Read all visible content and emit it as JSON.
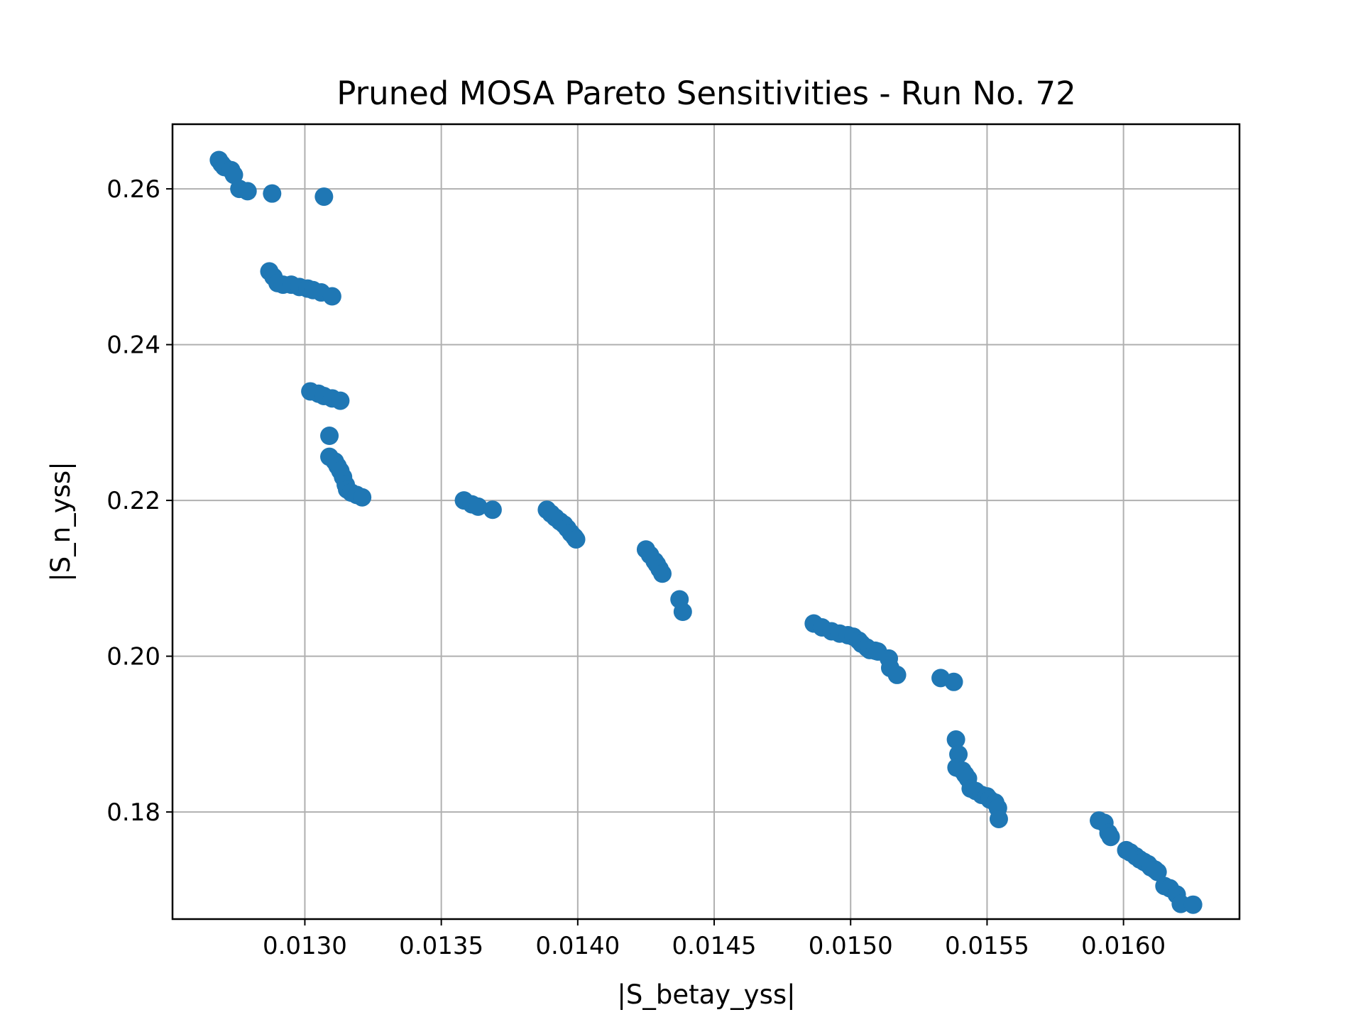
{
  "chart_data": {
    "type": "scatter",
    "title": "Pruned MOSA Pareto Sensitivities - Run No. 72",
    "xlabel": "|S_betay_yss|",
    "ylabel": "|S_n_yss|",
    "xlim": [
      0.012515,
      0.016425
    ],
    "ylim": [
      0.16625,
      0.2683
    ],
    "xticks": [
      0.013,
      0.0135,
      0.014,
      0.0145,
      0.015,
      0.0155,
      0.016
    ],
    "xtick_labels": [
      "0.0130",
      "0.0135",
      "0.0140",
      "0.0145",
      "0.0150",
      "0.0155",
      "0.0160"
    ],
    "yticks": [
      0.18,
      0.2,
      0.22,
      0.24,
      0.26
    ],
    "ytick_labels": [
      "0.18",
      "0.20",
      "0.22",
      "0.24",
      "0.26"
    ],
    "grid": true,
    "marker_color": "#1f77b4",
    "points": [
      [
        0.012685,
        0.2637
      ],
      [
        0.012695,
        0.2632
      ],
      [
        0.012705,
        0.2628
      ],
      [
        0.01273,
        0.2624
      ],
      [
        0.01274,
        0.2618
      ],
      [
        0.01276,
        0.26
      ],
      [
        0.01279,
        0.2597
      ],
      [
        0.01288,
        0.2594
      ],
      [
        0.01307,
        0.259
      ],
      [
        0.01287,
        0.2494
      ],
      [
        0.012885,
        0.2487
      ],
      [
        0.0129,
        0.2479
      ],
      [
        0.01292,
        0.2477
      ],
      [
        0.01295,
        0.2477
      ],
      [
        0.01298,
        0.2474
      ],
      [
        0.01301,
        0.2472
      ],
      [
        0.01303,
        0.247
      ],
      [
        0.01306,
        0.2467
      ],
      [
        0.0131,
        0.2462
      ],
      [
        0.01302,
        0.234
      ],
      [
        0.01305,
        0.2337
      ],
      [
        0.01307,
        0.2334
      ],
      [
        0.0131,
        0.2331
      ],
      [
        0.01313,
        0.2328
      ],
      [
        0.01309,
        0.2283
      ],
      [
        0.01309,
        0.2256
      ],
      [
        0.01311,
        0.225
      ],
      [
        0.01312,
        0.2244
      ],
      [
        0.01313,
        0.2238
      ],
      [
        0.01314,
        0.223
      ],
      [
        0.01315,
        0.222
      ],
      [
        0.013155,
        0.2214
      ],
      [
        0.01317,
        0.221
      ],
      [
        0.01319,
        0.2207
      ],
      [
        0.01321,
        0.2204
      ],
      [
        0.013583,
        0.22
      ],
      [
        0.013612,
        0.2195
      ],
      [
        0.013635,
        0.2192
      ],
      [
        0.013688,
        0.2188
      ],
      [
        0.013887,
        0.2188
      ],
      [
        0.013902,
        0.2183
      ],
      [
        0.013918,
        0.2178
      ],
      [
        0.013935,
        0.2173
      ],
      [
        0.01395,
        0.2169
      ],
      [
        0.013962,
        0.2164
      ],
      [
        0.013975,
        0.2158
      ],
      [
        0.013988,
        0.2153
      ],
      [
        0.013994,
        0.215
      ],
      [
        0.01425,
        0.2137
      ],
      [
        0.014265,
        0.213
      ],
      [
        0.014282,
        0.2122
      ],
      [
        0.01429,
        0.2118
      ],
      [
        0.0143,
        0.2112
      ],
      [
        0.01431,
        0.2106
      ],
      [
        0.014373,
        0.2073
      ],
      [
        0.014385,
        0.2057
      ],
      [
        0.014865,
        0.2042
      ],
      [
        0.014895,
        0.2037
      ],
      [
        0.01493,
        0.2032
      ],
      [
        0.01496,
        0.2029
      ],
      [
        0.01499,
        0.2027
      ],
      [
        0.01501,
        0.2025
      ],
      [
        0.01503,
        0.202
      ],
      [
        0.01504,
        0.2016
      ],
      [
        0.01506,
        0.2011
      ],
      [
        0.01507,
        0.2008
      ],
      [
        0.01509,
        0.2007
      ],
      [
        0.0151,
        0.2006
      ],
      [
        0.01514,
        0.1997
      ],
      [
        0.015145,
        0.1985
      ],
      [
        0.01517,
        0.1976
      ],
      [
        0.01533,
        0.1972
      ],
      [
        0.015378,
        0.1967
      ],
      [
        0.015386,
        0.1893
      ],
      [
        0.015395,
        0.1874
      ],
      [
        0.015388,
        0.1857
      ],
      [
        0.01541,
        0.1853
      ],
      [
        0.01542,
        0.1848
      ],
      [
        0.01543,
        0.1843
      ],
      [
        0.01544,
        0.183
      ],
      [
        0.015458,
        0.1827
      ],
      [
        0.01548,
        0.1822
      ],
      [
        0.0155,
        0.182
      ],
      [
        0.01551,
        0.1816
      ],
      [
        0.01553,
        0.1812
      ],
      [
        0.01554,
        0.1805
      ],
      [
        0.015543,
        0.1791
      ],
      [
        0.01591,
        0.1789
      ],
      [
        0.01593,
        0.1786
      ],
      [
        0.015945,
        0.1773
      ],
      [
        0.015953,
        0.1768
      ],
      [
        0.01601,
        0.1751
      ],
      [
        0.016025,
        0.1748
      ],
      [
        0.016045,
        0.1743
      ],
      [
        0.01606,
        0.1739
      ],
      [
        0.016075,
        0.1736
      ],
      [
        0.01609,
        0.1733
      ],
      [
        0.0161,
        0.1729
      ],
      [
        0.016115,
        0.1726
      ],
      [
        0.016125,
        0.1723
      ],
      [
        0.01615,
        0.1705
      ],
      [
        0.01617,
        0.1702
      ],
      [
        0.016195,
        0.1694
      ],
      [
        0.01621,
        0.1682
      ],
      [
        0.016255,
        0.1681
      ]
    ]
  }
}
